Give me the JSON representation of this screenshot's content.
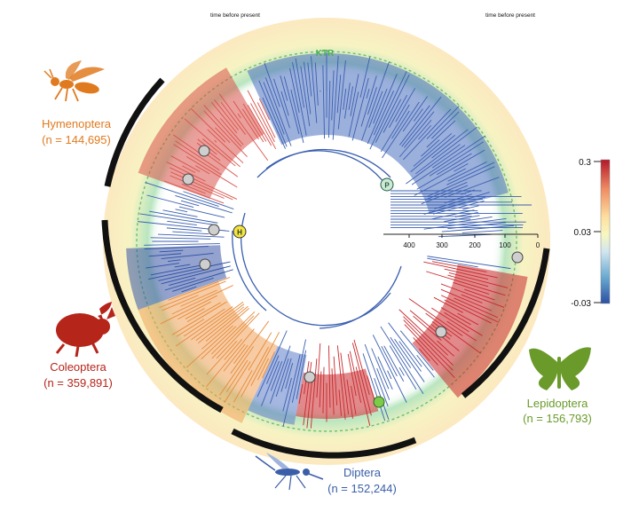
{
  "figure": {
    "time_label_left": "time before present",
    "time_label_right": "time before present",
    "ktr_label": "KTR",
    "node_labels": {
      "h": "H",
      "p": "P"
    }
  },
  "clades": [
    {
      "id": "hymenoptera",
      "name": "Hymenoptera",
      "count": "(n = 144,695)",
      "color": "#e07a1f",
      "icon": "wasp-icon"
    },
    {
      "id": "coleoptera",
      "name": "Coleoptera",
      "count": "(n = 359,891)",
      "color": "#b5251a",
      "icon": "beetle-icon"
    },
    {
      "id": "diptera",
      "name": "Diptera",
      "count": "(n = 152,244)",
      "color": "#3a5ea8",
      "icon": "mosquito-icon"
    },
    {
      "id": "lepidoptera",
      "name": "Lepidoptera",
      "count": "(n = 156,793)",
      "color": "#6a9a2a",
      "icon": "butterfly-icon"
    }
  ],
  "time_axis": {
    "ticks": [
      "400",
      "300",
      "200",
      "100",
      "0"
    ]
  },
  "colorbar": {
    "ticks": [
      "0.3",
      "0.03",
      "-0.03"
    ],
    "stops": [
      "#b2182b",
      "#ef8a62",
      "#fddbc7",
      "#f7f7c0",
      "#d1e5f0",
      "#67a9cf",
      "#2c4fa3"
    ]
  }
}
